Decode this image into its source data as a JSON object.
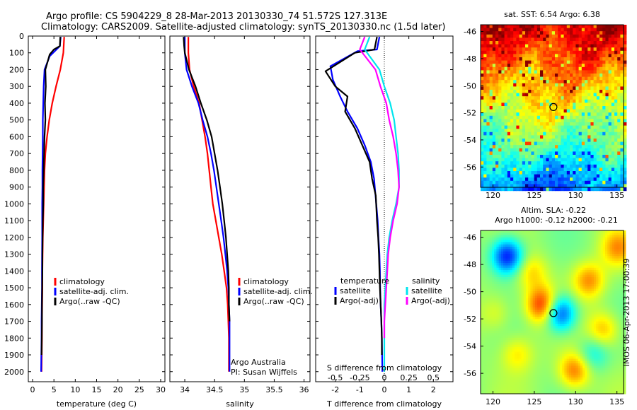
{
  "header": {
    "line1": "Argo profile: CS 5904229_8 28-Mar-2013 20130330_74 51.572S 127.313E",
    "line2": "Climatology: CARS2009. Satellite-adjusted climatology: synTS_20130330.nc (1.5d later)"
  },
  "colors": {
    "climatology": "#ff0000",
    "satellite": "#0000ff",
    "argo": "#000000",
    "s_satellite": "#00e5ee",
    "s_argo": "#ff00ff"
  },
  "chart_data": [
    {
      "type": "line",
      "xlabel": "temperature (deg C)",
      "xlim": [
        -1,
        31
      ],
      "xticks": [
        0,
        5,
        10,
        15,
        20,
        25,
        30
      ],
      "ylim": [
        2060,
        0
      ],
      "yticks": [
        0,
        100,
        200,
        300,
        400,
        500,
        600,
        700,
        800,
        900,
        1000,
        1100,
        1200,
        1300,
        1400,
        1500,
        1600,
        1700,
        1800,
        1900,
        2000
      ],
      "legend": [
        "climatology",
        "satellite-adj. clim.",
        "Argo(..raw -QC)"
      ],
      "series": [
        {
          "name": "climatology",
          "color": "#ff0000",
          "x": [
            7.4,
            7.2,
            6.5,
            5.5,
            4.6,
            3.9,
            3.4,
            3.0,
            2.8,
            2.7,
            2.6,
            2.5,
            2.4,
            2.35,
            2.3,
            2.3,
            2.25,
            2.2,
            2.2,
            2.15,
            2.1
          ],
          "y": [
            5,
            100,
            200,
            300,
            400,
            500,
            600,
            700,
            800,
            900,
            1000,
            1100,
            1200,
            1300,
            1400,
            1500,
            1600,
            1700,
            1800,
            1900,
            2000
          ]
        },
        {
          "name": "satellite-adj. clim.",
          "color": "#0000ff",
          "x": [
            6.6,
            6.4,
            5.2,
            4.0,
            2.8,
            2.6,
            2.5,
            2.4,
            2.4,
            2.35,
            2.3,
            2.3,
            2.25,
            2.25,
            2.2,
            2.2,
            2.15,
            2.1,
            2.1,
            2.05,
            2.0
          ],
          "y": [
            5,
            60,
            90,
            120,
            200,
            300,
            400,
            500,
            600,
            700,
            800,
            900,
            1000,
            1200,
            1400,
            1500,
            1600,
            1700,
            1800,
            1900,
            2000
          ]
        },
        {
          "name": "Argo(..raw -QC)",
          "color": "#000000",
          "x": [
            6.5,
            6.4,
            5.0,
            4.0,
            3.0,
            3.1,
            2.9,
            3.0,
            2.8,
            2.7,
            2.6,
            2.5,
            2.5,
            2.4,
            2.35,
            2.3,
            2.3,
            2.25,
            2.2,
            2.2,
            2.15,
            2.1
          ],
          "y": [
            5,
            60,
            80,
            110,
            200,
            300,
            400,
            500,
            600,
            700,
            800,
            900,
            1000,
            1100,
            1200,
            1300,
            1400,
            1500,
            1600,
            1700,
            1800,
            1900
          ]
        }
      ]
    },
    {
      "type": "line",
      "xlabel": "salinity",
      "xlim": [
        33.75,
        36.1
      ],
      "xticks": [
        34,
        34.5,
        35,
        35.5,
        36
      ],
      "ylim": [
        2060,
        0
      ],
      "legend": [
        "climatology",
        "satellite-adj. clim.",
        "Argo(..raw -QC)"
      ],
      "annotations": [
        "Argo Australia",
        "PI: Susan Wijffels"
      ],
      "series": [
        {
          "name": "climatology",
          "color": "#ff0000",
          "x": [
            34.06,
            34.06,
            34.08,
            34.15,
            34.24,
            34.29,
            34.34,
            34.38,
            34.41,
            34.44,
            34.47,
            34.52,
            34.57,
            34.62,
            34.66,
            34.7,
            34.72,
            34.73,
            34.74,
            34.74,
            34.74
          ],
          "y": [
            5,
            100,
            200,
            300,
            400,
            500,
            600,
            700,
            800,
            900,
            1000,
            1100,
            1200,
            1300,
            1400,
            1500,
            1600,
            1700,
            1800,
            1900,
            2000
          ]
        },
        {
          "name": "satellite-adj. clim.",
          "color": "#0000ff",
          "x": [
            34.0,
            34.0,
            34.03,
            34.12,
            34.23,
            34.3,
            34.38,
            34.44,
            34.49,
            34.53,
            34.57,
            34.61,
            34.65,
            34.68,
            34.71,
            34.73,
            34.74,
            34.75,
            34.75,
            34.75,
            34.75
          ],
          "y": [
            5,
            100,
            200,
            300,
            400,
            500,
            600,
            700,
            800,
            900,
            1000,
            1100,
            1200,
            1300,
            1400,
            1500,
            1600,
            1700,
            1800,
            1900,
            2000
          ]
        },
        {
          "name": "Argo(..raw -QC)",
          "color": "#000000",
          "x": [
            33.98,
            33.99,
            34.0,
            34.07,
            34.18,
            34.27,
            34.37,
            34.45,
            34.5,
            34.55,
            34.59,
            34.63,
            34.66,
            34.69,
            34.71,
            34.73,
            34.74,
            34.74,
            34.75
          ],
          "y": [
            5,
            60,
            100,
            200,
            300,
            400,
            500,
            600,
            700,
            800,
            900,
            1000,
            1100,
            1200,
            1300,
            1400,
            1500,
            1600,
            1700
          ]
        }
      ]
    },
    {
      "type": "line",
      "xlabel": "T difference from climatology",
      "xlabel_top": "S difference from climatology",
      "xlim": [
        -2.8,
        2.8
      ],
      "xticks": [
        -2,
        -1,
        0,
        1,
        2
      ],
      "x2ticks": [
        "-0.5",
        "-0.25",
        "0",
        "0.25",
        "0.5"
      ],
      "ylim": [
        2060,
        0
      ],
      "legend_temperature": {
        "heading": "temperature",
        "items": [
          "satellite",
          "Argo(-adj)"
        ]
      },
      "legend_salinity": {
        "heading": "salinity",
        "items": [
          "satellite",
          "Argo(-adj)"
        ]
      },
      "series": [
        {
          "name": "satellite",
          "group": "temperature",
          "color": "#0000ff",
          "x": [
            -0.2,
            -0.3,
            -1.1,
            -2.2,
            -2.1,
            -1.8,
            -1.5,
            -1.1,
            -0.8,
            -0.55,
            -0.42,
            -0.33,
            -0.27,
            -0.24,
            -0.2,
            -0.18,
            -0.17,
            -0.15,
            -0.12,
            -0.1,
            -0.08
          ],
          "y": [
            5,
            80,
            90,
            180,
            260,
            360,
            450,
            550,
            650,
            750,
            850,
            1000,
            1100,
            1200,
            1300,
            1400,
            1500,
            1600,
            1700,
            1800,
            2000
          ]
        },
        {
          "name": "Argo(-adj)",
          "group": "temperature",
          "color": "#000000",
          "x": [
            -0.3,
            -0.4,
            -1.2,
            -2.4,
            -2.0,
            -1.5,
            -1.6,
            -1.2,
            -0.9,
            -0.6,
            -0.5,
            -0.35,
            -0.3,
            -0.25,
            -0.22,
            -0.2,
            -0.18,
            -0.15,
            -0.12,
            -0.1,
            -0.1
          ],
          "y": [
            5,
            80,
            100,
            210,
            300,
            360,
            450,
            550,
            650,
            750,
            850,
            950,
            1100,
            1200,
            1300,
            1400,
            1500,
            1600,
            1700,
            1800,
            1900
          ]
        },
        {
          "name": "satellite",
          "group": "salinity",
          "color": "#00e5ee",
          "x": [
            -0.15,
            -0.2,
            -0.05,
            0.0,
            0.06,
            0.1,
            0.12,
            0.14,
            0.15,
            0.15,
            0.12,
            0.08,
            0.05,
            0.03,
            0.02,
            0.01,
            0.0,
            0.0,
            0.0,
            0.0
          ],
          "y": [
            5,
            80,
            200,
            300,
            400,
            500,
            600,
            700,
            800,
            900,
            1000,
            1100,
            1200,
            1300,
            1400,
            1500,
            1600,
            1700,
            1800,
            2000
          ]
        },
        {
          "name": "Argo(-adj)",
          "group": "salinity",
          "color": "#ff00ff",
          "x": [
            -0.2,
            -0.25,
            -0.09,
            -0.04,
            0.02,
            0.05,
            0.09,
            0.12,
            0.14,
            0.15,
            0.13,
            0.09,
            0.06,
            0.04,
            0.03,
            0.02,
            0.01,
            0.0,
            0.0
          ],
          "y": [
            5,
            80,
            200,
            300,
            400,
            500,
            600,
            700,
            800,
            900,
            1000,
            1100,
            1200,
            1300,
            1400,
            1500,
            1600,
            1700,
            1800
          ]
        }
      ]
    },
    {
      "type": "heatmap",
      "title": "sat. SST: 6.54  Argo: 6.38",
      "xlim": [
        118.5,
        135.8
      ],
      "xticks": [
        120,
        125,
        130,
        135
      ],
      "ylim": [
        -57.5,
        -45.5
      ],
      "yticks": [
        -46,
        -48,
        -50,
        -52,
        -54,
        -56
      ],
      "marker": {
        "lon": 127.313,
        "lat": -51.572
      },
      "value_range": [
        2,
        12
      ]
    },
    {
      "type": "heatmap",
      "title_line1": "Altim. SLA: -0.22",
      "title_line2": "Argo h1000: -0.12 h2000: -0.21",
      "side_text": "IMOS 06-Apr-2013 17:00:39",
      "xlim": [
        118.5,
        135.8
      ],
      "xticks": [
        120,
        125,
        130,
        135
      ],
      "ylim": [
        -57.5,
        -45.5
      ],
      "yticks": [
        -46,
        -48,
        -50,
        -52,
        -54,
        -56
      ],
      "marker": {
        "lon": 127.313,
        "lat": -51.572
      }
    }
  ]
}
